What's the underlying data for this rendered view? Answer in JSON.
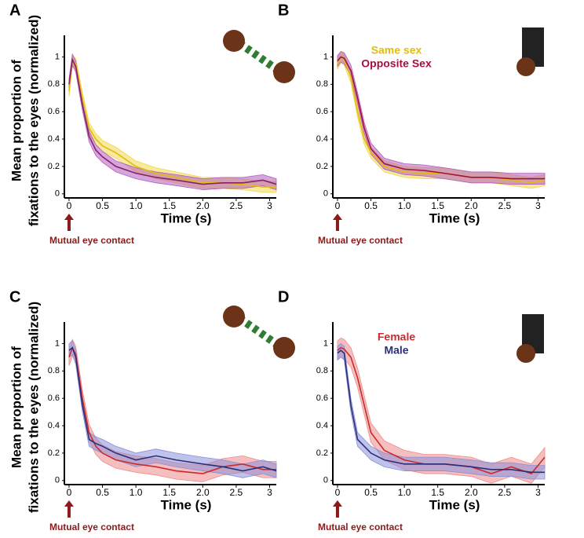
{
  "chart_data": [
    {
      "type": "line",
      "panel": "A",
      "ylabel": [
        "Mean proportion of",
        "fixations to the eyes (normalized)"
      ],
      "xlabel": "Time (s)",
      "annotation": "Mutual eye contact",
      "x": [
        0,
        0.05,
        0.1,
        0.2,
        0.3,
        0.4,
        0.5,
        0.7,
        1.0,
        1.3,
        1.6,
        2.0,
        2.3,
        2.6,
        2.9,
        3.1
      ],
      "series": [
        {
          "color": "#e0bd10",
          "band_color": "#f0d84a",
          "error": 0.04,
          "values": [
            0.75,
            0.97,
            0.95,
            0.7,
            0.48,
            0.4,
            0.35,
            0.3,
            0.2,
            0.15,
            0.12,
            0.08,
            0.08,
            0.07,
            0.05,
            0.05
          ]
        },
        {
          "color": "#8a1f6a",
          "band_color": "#b35cc0",
          "error": 0.04,
          "values": [
            0.8,
            0.98,
            0.93,
            0.65,
            0.42,
            0.32,
            0.27,
            0.2,
            0.15,
            0.12,
            0.1,
            0.07,
            0.08,
            0.08,
            0.1,
            0.07
          ]
        }
      ],
      "xlim": [
        -0.07,
        3.1
      ],
      "ylim": [
        -0.03,
        1.1
      ],
      "xticks": [
        0,
        0.5,
        {
          "value": 1,
          "label": "1.0"
        },
        1.5,
        {
          "value": 2,
          "label": "2.0"
        },
        2.5,
        3
      ],
      "yticks": [
        0,
        0.2,
        0.4,
        0.6,
        0.8,
        1
      ]
    },
    {
      "type": "line",
      "panel": "B",
      "xlabel": "Time (s)",
      "annotation": "Mutual eye contact",
      "x": [
        0,
        0.05,
        0.1,
        0.2,
        0.3,
        0.4,
        0.5,
        0.7,
        1.0,
        1.3,
        1.6,
        2.0,
        2.3,
        2.6,
        2.9,
        3.1
      ],
      "series": [
        {
          "name": "Same sex",
          "color": "#e0bd10",
          "band_color": "#f0d84a",
          "error": 0.04,
          "values": [
            0.95,
            1.0,
            0.98,
            0.85,
            0.6,
            0.4,
            0.3,
            0.2,
            0.16,
            0.15,
            0.15,
            0.12,
            0.12,
            0.1,
            0.08,
            0.1
          ]
        },
        {
          "name": "Opposite Sex",
          "color": "#a3103f",
          "band_color": "#b35cc0",
          "error": 0.04,
          "values": [
            0.97,
            1.0,
            0.99,
            0.9,
            0.7,
            0.48,
            0.33,
            0.22,
            0.18,
            0.17,
            0.15,
            0.12,
            0.12,
            0.11,
            0.11,
            0.11
          ]
        }
      ],
      "xlim": [
        -0.07,
        3.1
      ],
      "ylim": [
        -0.03,
        1.1
      ],
      "xticks": [
        0,
        0.5,
        {
          "value": 1,
          "label": "1.0"
        },
        1.5,
        {
          "value": 2,
          "label": "2.0"
        },
        2.5,
        3
      ],
      "yticks": [
        0,
        0.2,
        0.4,
        0.6,
        0.8,
        1
      ]
    },
    {
      "type": "line",
      "panel": "C",
      "ylabel": [
        "Mean proportion of",
        "fixations to the eyes (normalized)"
      ],
      "xlabel": "Time (s)",
      "annotation": "Mutual eye contact",
      "x": [
        0,
        0.05,
        0.1,
        0.2,
        0.3,
        0.4,
        0.5,
        0.7,
        1.0,
        1.3,
        1.6,
        2.0,
        2.3,
        2.6,
        2.9,
        3.1
      ],
      "series": [
        {
          "color": "#cc2a2a",
          "band_color": "#ee8a8a",
          "error": 0.06,
          "values": [
            0.9,
            0.97,
            0.92,
            0.6,
            0.35,
            0.25,
            0.2,
            0.15,
            0.12,
            0.1,
            0.07,
            0.05,
            0.1,
            0.12,
            0.08,
            0.08
          ]
        },
        {
          "color": "#2b2f7a",
          "band_color": "#8a8fd8",
          "error": 0.05,
          "values": [
            0.95,
            0.97,
            0.9,
            0.55,
            0.3,
            0.27,
            0.25,
            0.2,
            0.15,
            0.18,
            0.15,
            0.12,
            0.1,
            0.07,
            0.1,
            0.07
          ]
        }
      ],
      "xlim": [
        -0.07,
        3.1
      ],
      "ylim": [
        -0.03,
        1.1
      ],
      "xticks": [
        0,
        0.5,
        {
          "value": 1,
          "label": "1.0"
        },
        1.5,
        {
          "value": 2,
          "label": "2.0"
        },
        2.5,
        3
      ],
      "yticks": [
        0,
        0.2,
        0.4,
        0.6,
        0.8,
        1
      ]
    },
    {
      "type": "line",
      "panel": "D",
      "xlabel": "Time (s)",
      "annotation": "Mutual eye contact",
      "x": [
        0,
        0.05,
        0.1,
        0.2,
        0.3,
        0.4,
        0.5,
        0.7,
        1.0,
        1.3,
        1.6,
        2.0,
        2.3,
        2.6,
        2.9,
        3.1
      ],
      "series": [
        {
          "name": "Female",
          "color": "#cc2a2a",
          "band_color": "#ee8a8a",
          "error": 0.07,
          "values": [
            0.95,
            0.97,
            0.96,
            0.9,
            0.75,
            0.55,
            0.35,
            0.22,
            0.15,
            0.12,
            0.12,
            0.1,
            0.05,
            0.1,
            0.05,
            0.17
          ]
        },
        {
          "name": "Male",
          "color": "#2b2f7a",
          "band_color": "#8a8fd8",
          "error": 0.05,
          "values": [
            0.93,
            0.95,
            0.93,
            0.55,
            0.3,
            0.25,
            0.2,
            0.15,
            0.12,
            0.12,
            0.12,
            0.1,
            0.08,
            0.08,
            0.06,
            0.06
          ]
        }
      ],
      "xlim": [
        -0.07,
        3.1
      ],
      "ylim": [
        -0.03,
        1.1
      ],
      "xticks": [
        0,
        0.5,
        {
          "value": 1,
          "label": "1.0"
        },
        1.5,
        {
          "value": 2,
          "label": "2.0"
        },
        2.5,
        3
      ],
      "yticks": [
        0,
        0.2,
        0.4,
        0.6,
        0.8,
        1
      ]
    }
  ]
}
